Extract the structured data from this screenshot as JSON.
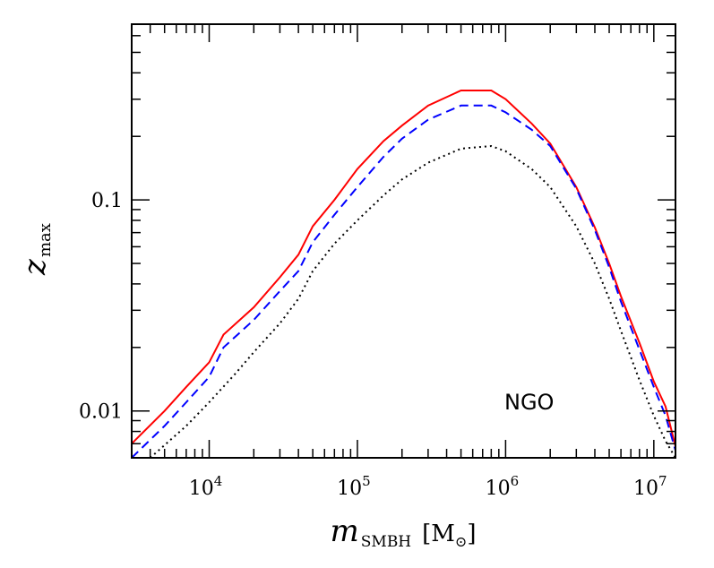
{
  "chart_data": {
    "type": "line",
    "title": "",
    "xlabel": {
      "main": "m",
      "sub": "SMBH",
      "unit_open": "[M",
      "unit_sub": "⊙",
      "unit_close": "]"
    },
    "ylabel": {
      "main": "z",
      "sub": "max"
    },
    "x_scale": "log",
    "y_scale": "log",
    "xlim": [
      3000,
      14000000
    ],
    "ylim": [
      0.006,
      0.68
    ],
    "x_tick_labels": [
      {
        "value": 10000,
        "base": "10",
        "exp": "4"
      },
      {
        "value": 100000,
        "base": "10",
        "exp": "5"
      },
      {
        "value": 1000000,
        "base": "10",
        "exp": "6"
      },
      {
        "value": 10000000,
        "base": "10",
        "exp": "7"
      }
    ],
    "y_tick_labels": [
      {
        "value": 0.01,
        "label": "0.01"
      },
      {
        "value": 0.1,
        "label": "0.1"
      }
    ],
    "annotation": "NGO",
    "series": [
      {
        "style": "solid",
        "color": "#ff0000",
        "x": [
          3000,
          5000,
          7000,
          10000,
          12500,
          20000,
          30000,
          40000,
          50000,
          70000,
          100000,
          150000,
          200000,
          300000,
          500000,
          800000,
          1000000,
          1500000,
          2000000,
          3000000,
          4000000,
          5000000,
          6000000,
          8000000,
          10000000,
          12000000,
          14000000
        ],
        "y": [
          0.007,
          0.01,
          0.013,
          0.017,
          0.023,
          0.031,
          0.043,
          0.055,
          0.075,
          0.1,
          0.14,
          0.19,
          0.225,
          0.28,
          0.33,
          0.33,
          0.3,
          0.23,
          0.185,
          0.115,
          0.074,
          0.05,
          0.035,
          0.021,
          0.0138,
          0.0105,
          0.0068
        ]
      },
      {
        "style": "dashed",
        "color": "#0000ff",
        "x": [
          3000,
          5000,
          7000,
          10000,
          12500,
          20000,
          30000,
          40000,
          50000,
          70000,
          100000,
          150000,
          200000,
          300000,
          500000,
          800000,
          1000000,
          1500000,
          2000000,
          3000000,
          4000000,
          5000000,
          6000000,
          8000000,
          10000000,
          12000000,
          14000000
        ],
        "y": [
          0.006,
          0.0085,
          0.011,
          0.0145,
          0.02,
          0.027,
          0.037,
          0.046,
          0.063,
          0.085,
          0.115,
          0.16,
          0.195,
          0.24,
          0.28,
          0.28,
          0.26,
          0.215,
          0.18,
          0.113,
          0.072,
          0.048,
          0.033,
          0.0195,
          0.013,
          0.0095,
          0.0065
        ]
      },
      {
        "style": "dotted",
        "color": "#000000",
        "x": [
          4000,
          7000,
          10000,
          15000,
          20000,
          30000,
          40000,
          50000,
          70000,
          100000,
          150000,
          200000,
          300000,
          500000,
          800000,
          1000000,
          1500000,
          2000000,
          3000000,
          4000000,
          5000000,
          6000000,
          8000000,
          10000000,
          12000000,
          14000000
        ],
        "y": [
          0.006,
          0.0085,
          0.011,
          0.015,
          0.019,
          0.026,
          0.034,
          0.046,
          0.062,
          0.08,
          0.105,
          0.125,
          0.15,
          0.175,
          0.18,
          0.17,
          0.14,
          0.115,
          0.075,
          0.05,
          0.034,
          0.024,
          0.014,
          0.0095,
          0.0072,
          0.006
        ]
      }
    ]
  }
}
